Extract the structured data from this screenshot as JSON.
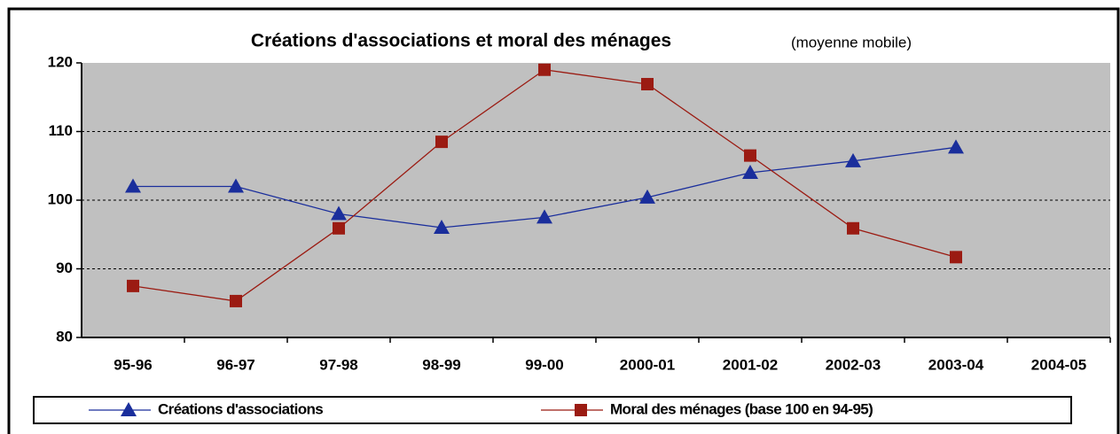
{
  "chart_data": {
    "type": "line",
    "title": "Créations d'associations et moral des ménages",
    "subtitle": "(moyenne mobile)",
    "categories": [
      "95-96",
      "96-97",
      "97-98",
      "98-99",
      "99-00",
      "2000-01",
      "2001-02",
      "2002-03",
      "2003-04",
      "2004-05"
    ],
    "series": [
      {
        "name": "Créations d'associations",
        "color": "#1a2e9c",
        "marker": "triangle",
        "values": [
          102,
          102,
          98,
          96,
          97.5,
          100.4,
          104,
          105.7,
          107.7,
          null
        ]
      },
      {
        "name": "Moral des ménages (base 100 en 94-95)",
        "color": "#9b1b12",
        "marker": "square",
        "values": [
          87.5,
          85.3,
          95.9,
          108.5,
          119,
          116.9,
          106.5,
          95.9,
          91.7,
          null
        ]
      }
    ],
    "ylim": [
      80,
      120
    ],
    "yticks": [
      80,
      90,
      100,
      110,
      120
    ],
    "grid": true
  }
}
